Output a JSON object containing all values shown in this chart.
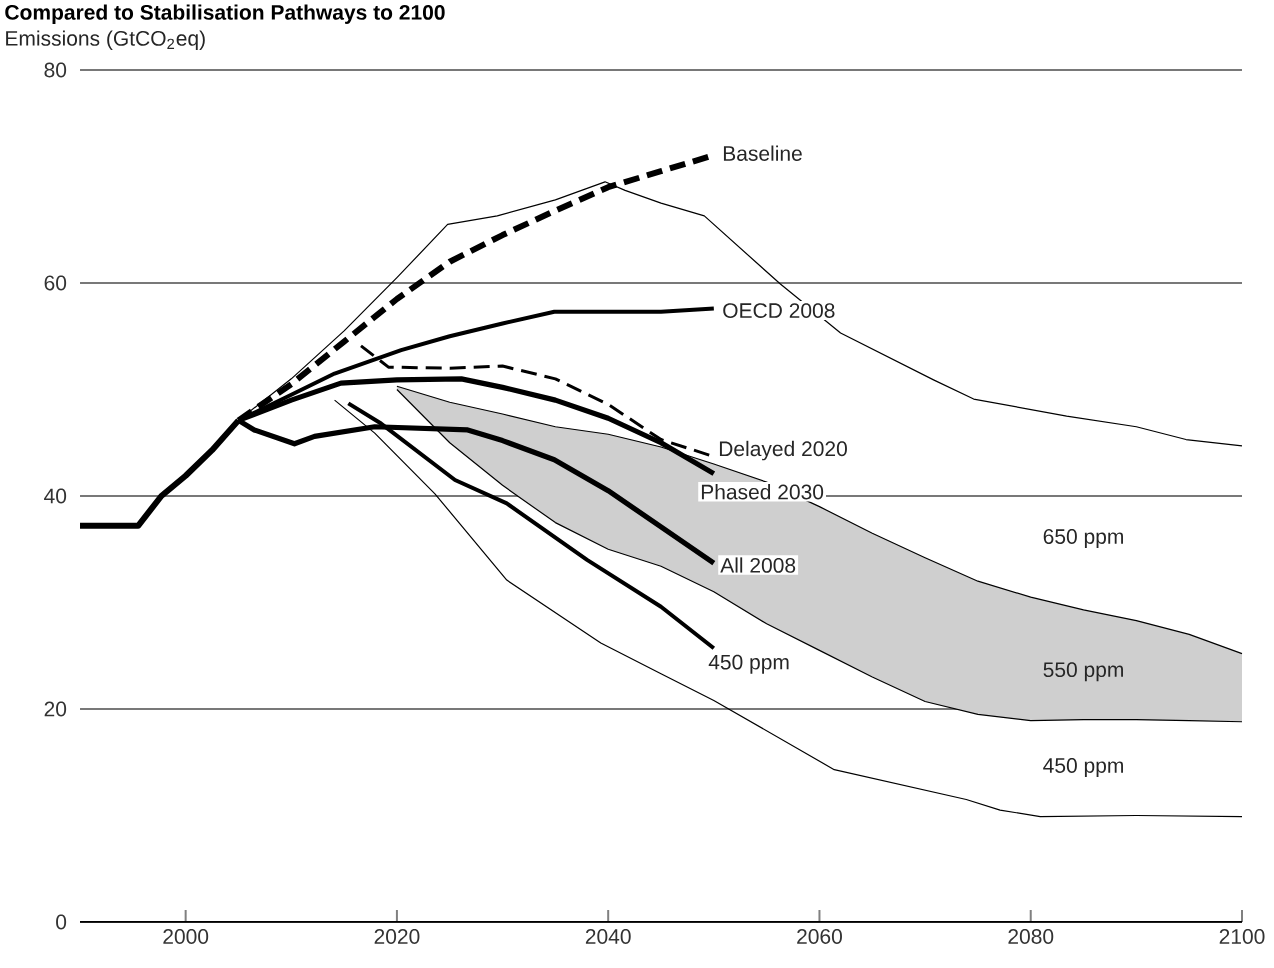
{
  "chart_data": {
    "type": "line",
    "title": "Compared to Stabilisation Pathways to 2100",
    "ylabel": "Emissions (GtCO$_{2}$eq)",
    "xlim": [
      1990,
      2100
    ],
    "ylim": [
      0,
      80
    ],
    "xticks": [
      2000,
      2020,
      2040,
      2060,
      2080,
      2100
    ],
    "yticks": [
      0,
      20,
      40,
      60,
      80
    ],
    "grid": "y",
    "series": [
      {
        "color": "#000000",
        "x": [
          2020,
          2025,
          2030,
          2035,
          2040,
          2045,
          2050,
          2055,
          2060,
          2065,
          2070,
          2075,
          2080,
          2085,
          2090,
          2095,
          2100
        ],
        "values": [
          50.3,
          48.8,
          47.7,
          46.5,
          45.8,
          44.6,
          43,
          41.3,
          39,
          36.5,
          34.2,
          32,
          30.5,
          29.3,
          28.3,
          27,
          25.2
        ],
        "upper": [
          50.3,
          48.8,
          47.7,
          46.5,
          45.8,
          44.6,
          43,
          41.3,
          39,
          36.5,
          34.2,
          32,
          30.5,
          29.3,
          28.3,
          27,
          25.2
        ],
        "lower": [
          50,
          45,
          41,
          37.5,
          35,
          33.4,
          31,
          28,
          25.5,
          23,
          20.7,
          19.5,
          18.9,
          19,
          19,
          18.9,
          18.8
        ]
      },
      {
        "color": "#000000",
        "x": [
          2020,
          2025,
          2030,
          2035,
          2040,
          2045,
          2050,
          2055,
          2060,
          2065,
          2070,
          2075,
          2080,
          2085,
          2090,
          2095,
          2100
        ],
        "values": [
          50,
          45,
          41,
          37.5,
          35,
          33.4,
          31,
          28,
          25.5,
          23,
          20.7,
          19.5,
          18.9,
          19,
          19,
          18.9,
          18.8
        ]
      },
      {
        "color": "#000000",
        "x": [
          2005,
          2010,
          2015,
          2020,
          2024.8,
          2029.5,
          2035,
          2039.7,
          2041.6,
          2045,
          2049.1,
          2056.3,
          2062,
          2070.8,
          2074.6,
          2083.4,
          2090,
          2094.7,
          2100
        ],
        "values": [
          47.1,
          51,
          55.5,
          60.5,
          65.5,
          66.3,
          67.8,
          69.5,
          68.7,
          67.5,
          66.3,
          59.9,
          55.3,
          50.9,
          49.1,
          47.5,
          46.5,
          45.3,
          44.7
        ]
      },
      {
        "color": "#000000",
        "x": [
          2014.1,
          2017.9,
          2023.6,
          2030.4,
          2039.3,
          2045,
          2050,
          2061.4,
          2073.9,
          2077.1,
          2080.9,
          2090,
          2100
        ],
        "values": [
          49,
          45.9,
          40.2,
          32.1,
          26.2,
          23.3,
          20.8,
          14.3,
          11.5,
          10.5,
          9.9,
          10,
          9.9
        ]
      },
      {
        "color": "#000000",
        "x": [
          1990,
          1995.5,
          1997.7,
          2000,
          2002.5,
          2005
        ],
        "values": [
          37.2,
          37.2,
          40,
          41.9,
          44.3,
          47.1
        ]
      },
      {
        "name": "Baseline",
        "color": "#000000",
        "line_style": "dashed",
        "x": [
          2005,
          2010,
          2015,
          2020,
          2025,
          2030,
          2035,
          2040,
          2045,
          2050
        ],
        "values": [
          47.1,
          50.5,
          54.5,
          58.5,
          62,
          64.5,
          66.8,
          69,
          70.5,
          72
        ]
      },
      {
        "name": "OECD 2008",
        "color": "#000000",
        "x": [
          2005,
          2010,
          2014.1,
          2020.4,
          2025,
          2030,
          2034.9,
          2040,
          2045,
          2050
        ],
        "values": [
          47.1,
          49.5,
          51.5,
          53.7,
          55,
          56.2,
          57.3,
          57.3,
          57.3,
          57.6
        ]
      },
      {
        "name": "Delayed 2020",
        "color": "#000000",
        "line_style": "dashed",
        "x": [
          2016.6,
          2019.2,
          2025,
          2030,
          2035,
          2040,
          2045,
          2050
        ],
        "values": [
          54.1,
          52.1,
          52,
          52.2,
          51,
          48.6,
          45.3,
          43.7
        ]
      },
      {
        "name": "Phased 2030",
        "color": "#000000",
        "x": [
          2005,
          2010,
          2014.7,
          2020,
          2026.1,
          2030,
          2035,
          2040,
          2045,
          2050
        ],
        "values": [
          47.1,
          49,
          50.6,
          50.9,
          51,
          50.2,
          49,
          47.3,
          45,
          42.1
        ]
      },
      {
        "name": "All 2008",
        "color": "#000000",
        "x": [
          2005,
          2006.5,
          2010.3,
          2012.2,
          2017.9,
          2026.7,
          2030,
          2034.9,
          2040,
          2045,
          2050
        ],
        "values": [
          47.1,
          46.2,
          44.9,
          45.6,
          46.5,
          46.2,
          45.2,
          43.4,
          40.5,
          37.1,
          33.7
        ]
      },
      {
        "name": "450 ppm",
        "color": "#000000",
        "x": [
          2015.4,
          2018.5,
          2025.5,
          2030.4,
          2038,
          2045,
          2050
        ],
        "values": [
          48.7,
          46.8,
          41.5,
          39.3,
          34,
          29.6,
          25.7
        ]
      }
    ],
    "annotations": [
      "650 ppm",
      "550 ppm",
      "450 ppm"
    ]
  }
}
